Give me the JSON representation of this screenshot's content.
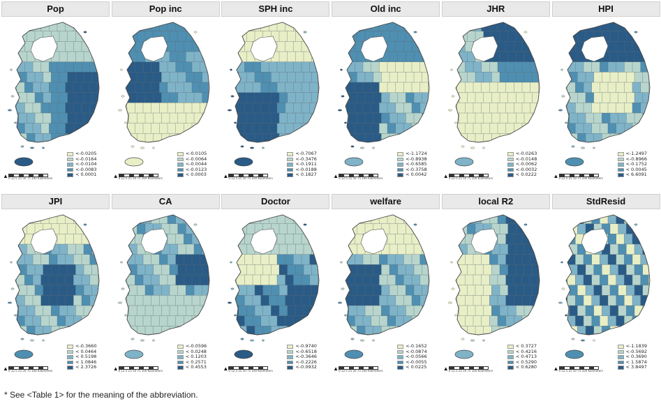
{
  "palette": [
    "#e8efc6",
    "#b7d5cc",
    "#7fb3c8",
    "#4f8fb1",
    "#2a5b86"
  ],
  "panels": [
    {
      "title": "Pop",
      "legend": [
        "<-0.0205",
        "<-0.0164",
        "<-0.0104",
        "<-0.0083",
        "< 0.0001"
      ],
      "jeju_class": 4,
      "pattern": "pop"
    },
    {
      "title": "Pop inc",
      "legend": [
        "<-0.0105",
        "<-0.0064",
        "<-0.0044",
        "<-0.0123",
        "< 0.0003"
      ],
      "jeju_class": 0,
      "pattern": "popinc"
    },
    {
      "title": "SPH inc",
      "legend": [
        "<-0.7067",
        "<-0.3476",
        "<-0.1911",
        "<-0.0188",
        "< 0.1827"
      ],
      "jeju_class": 4,
      "pattern": "sph"
    },
    {
      "title": "Old inc",
      "legend": [
        "<-1.1724",
        "<-0.8938",
        "<-0.6585",
        "<-0.3758",
        "< 0.0042"
      ],
      "jeju_class": 2,
      "pattern": "old"
    },
    {
      "title": "JHR",
      "legend": [
        "<-0.0263",
        "<-0.0148",
        "<-0.0062",
        "<-0.0032",
        "< 0.0222"
      ],
      "jeju_class": 2,
      "pattern": "jhr"
    },
    {
      "title": "HPI",
      "legend": [
        "<-1.2497",
        "<-0.8966",
        "<-0.1752",
        "< 0.0045",
        "< 6.6091"
      ],
      "jeju_class": 3,
      "pattern": "hpi"
    },
    {
      "title": "JPI",
      "legend": [
        "<-0.3660",
        "< 0.0464",
        "< 0.5198",
        "< 1.0846",
        "< 2.3726"
      ],
      "jeju_class": 3,
      "pattern": "jpi"
    },
    {
      "title": "CA",
      "legend": [
        "<-0.0596",
        "< 0.0248",
        "< 0.1203",
        "< 0.2571",
        "< 0.4553"
      ],
      "jeju_class": 2,
      "pattern": "ca"
    },
    {
      "title": "Doctor",
      "legend": [
        "<-0.9740",
        "<-0.6518",
        "<-0.3646",
        "<-0.2226",
        "<-0.0932"
      ],
      "jeju_class": 4,
      "pattern": "doctor"
    },
    {
      "title": "welfare",
      "legend": [
        "<-0.1652",
        "<-0.0874",
        "<-0.0566",
        "<-0.0055",
        "< 0.0225"
      ],
      "jeju_class": 3,
      "pattern": "welfare"
    },
    {
      "title": "local R2",
      "legend": [
        "< 0.3727",
        "< 0.4216",
        "< 0.4713",
        "< 0.5290",
        "< 0.6280"
      ],
      "jeju_class": 2,
      "pattern": "r2"
    },
    {
      "title": "StdResid",
      "legend": [
        "<-1.1839",
        "<-0.5692",
        "< 0.3690",
        "< 1.5874",
        "< 3.8497"
      ],
      "jeju_class": 3,
      "pattern": "resid"
    }
  ],
  "north_arrow": "▲",
  "scale_text": "0 12.5 25  50  75  100 Kilometers",
  "footnote": "* See <Table 1> for the meaning of the abbreviation."
}
